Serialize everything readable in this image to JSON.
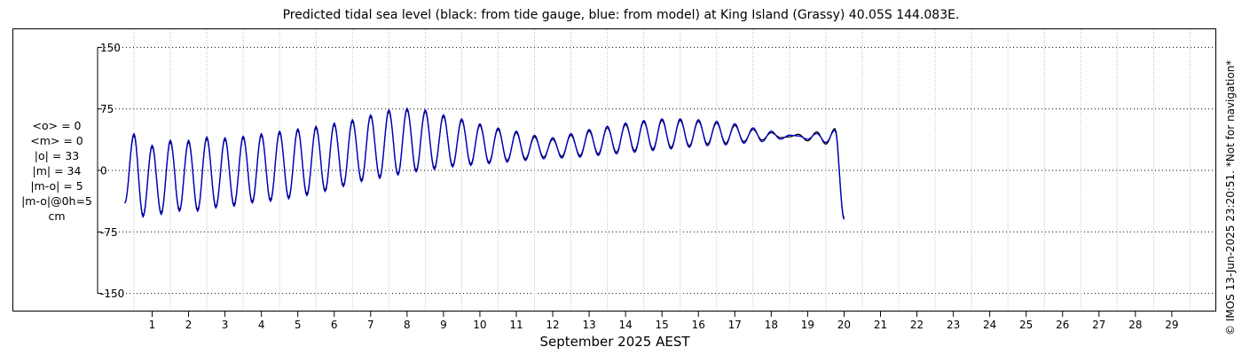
{
  "page": {
    "title": "Predicted tidal sea level (black: from tide gauge, blue: from model) at King Island (Grassy) 40.05S 144.083E.",
    "credit": "© IMOS 13-Jun-2025 23:20:51. *Not for navigation*",
    "stats": [
      "<o> = 0",
      "<m> = 0",
      "|o| = 33",
      "|m| = 34",
      "|m-o| = 5",
      "|m-o|@0h=5",
      "cm"
    ]
  },
  "chart_data": {
    "type": "line",
    "xlabel": "September 2025 AEST",
    "ylabel": "",
    "x_tick_labels": [
      "1",
      "2",
      "3",
      "4",
      "5",
      "6",
      "7",
      "8",
      "9",
      "10",
      "11",
      "12",
      "13",
      "14",
      "15",
      "16",
      "17",
      "18",
      "19",
      "20",
      "21",
      "22",
      "23",
      "24",
      "25",
      "26",
      "27",
      "28",
      "29"
    ],
    "x_range_days": [
      0.25,
      30.0
    ],
    "ylim": [
      -160,
      160
    ],
    "y_ticks": [
      150,
      75,
      0,
      -75,
      -150
    ],
    "y_tick_labels": [
      "150",
      "75",
      "0",
      "-75",
      "-150"
    ],
    "grid": {
      "horizontal": "dotted at y ticks",
      "vertical": "dotted at day boundaries"
    },
    "colors": {
      "observed": "#000000",
      "model": "#0000cc"
    },
    "series": [
      {
        "role": "observed",
        "x_step_days": 0.25,
        "values": [
          -40,
          43,
          -55,
          29,
          -52,
          35,
          -48,
          35,
          -48,
          39,
          -44,
          38,
          -42,
          40,
          -38,
          43,
          -36,
          46,
          -33,
          49,
          -29,
          52,
          -24,
          56,
          -18,
          60,
          -12,
          66,
          -8,
          72,
          -4,
          74,
          0,
          72,
          3,
          66,
          6,
          61,
          8,
          55,
          10,
          50,
          12,
          46,
          14,
          41,
          16,
          38,
          17,
          43,
          18,
          48,
          20,
          52,
          22,
          56,
          24,
          59,
          26,
          61,
          28,
          61,
          30,
          60,
          32,
          58,
          33,
          55,
          35,
          50,
          37,
          46,
          40,
          41,
          44,
          36,
          47,
          32,
          51,
          -58
        ]
      },
      {
        "role": "model",
        "x_step_days": 0.25,
        "values": [
          -40,
          45,
          -57,
          31,
          -54,
          37,
          -50,
          37,
          -50,
          41,
          -46,
          40,
          -44,
          42,
          -40,
          45,
          -38,
          48,
          -35,
          51,
          -31,
          54,
          -26,
          58,
          -20,
          62,
          -14,
          68,
          -10,
          74,
          -6,
          76,
          -2,
          74,
          1,
          68,
          4,
          63,
          6,
          57,
          8,
          52,
          10,
          48,
          12,
          43,
          14,
          40,
          15,
          45,
          16,
          50,
          18,
          54,
          20,
          58,
          22,
          61,
          24,
          63,
          26,
          63,
          28,
          62,
          30,
          60,
          31,
          57,
          33,
          52,
          35,
          48,
          38,
          43,
          42,
          38,
          45,
          34,
          49,
          -60
        ]
      }
    ]
  }
}
